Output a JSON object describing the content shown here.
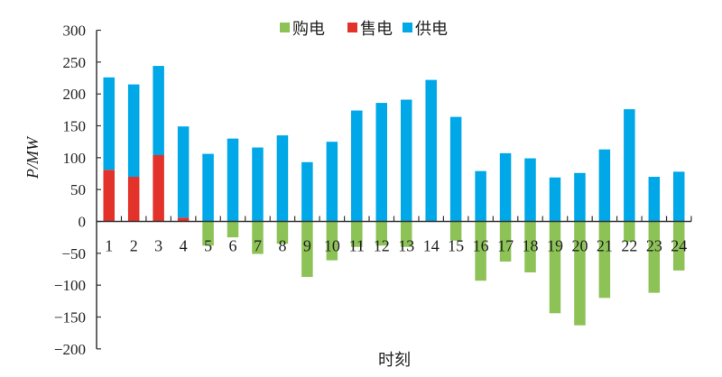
{
  "chart_data": {
    "type": "bar",
    "stacked": true,
    "title": "",
    "xlabel": "时刻",
    "ylabel": "P/MW",
    "ylim": [
      -200,
      300
    ],
    "yticks": [
      -200,
      -150,
      -100,
      -50,
      0,
      50,
      100,
      150,
      200,
      250,
      300
    ],
    "ytick_labels": [
      "−200",
      "−150",
      "−100",
      "−50",
      "0",
      "50",
      "100",
      "150",
      "200",
      "250",
      "300"
    ],
    "grid": false,
    "legend_position": "top",
    "categories": [
      "1",
      "2",
      "3",
      "4",
      "5",
      "6",
      "7",
      "8",
      "9",
      "10",
      "11",
      "12",
      "13",
      "14",
      "15",
      "16",
      "17",
      "18",
      "19",
      "20",
      "21",
      "22",
      "23",
      "24"
    ],
    "series": [
      {
        "name": "购电",
        "color": "#8dc257",
        "values": [
          0,
          0,
          0,
          0,
          -38,
          -25,
          -51,
          -35,
          -87,
          -61,
          -40,
          -38,
          -40,
          0,
          -30,
          -93,
          -63,
          -80,
          -144,
          -163,
          -120,
          -32,
          -112,
          -77
        ]
      },
      {
        "name": "售电",
        "color": "#e2322a",
        "values": [
          81,
          70,
          104,
          6,
          0,
          0,
          0,
          0,
          0,
          0,
          0,
          0,
          0,
          0,
          0,
          0,
          0,
          0,
          0,
          0,
          0,
          0,
          0,
          0
        ]
      },
      {
        "name": "供电",
        "color": "#00a8e8",
        "values": [
          145,
          145,
          140,
          143,
          106,
          130,
          116,
          135,
          93,
          125,
          174,
          186,
          191,
          222,
          164,
          79,
          107,
          99,
          69,
          76,
          113,
          176,
          70,
          78
        ]
      }
    ]
  }
}
